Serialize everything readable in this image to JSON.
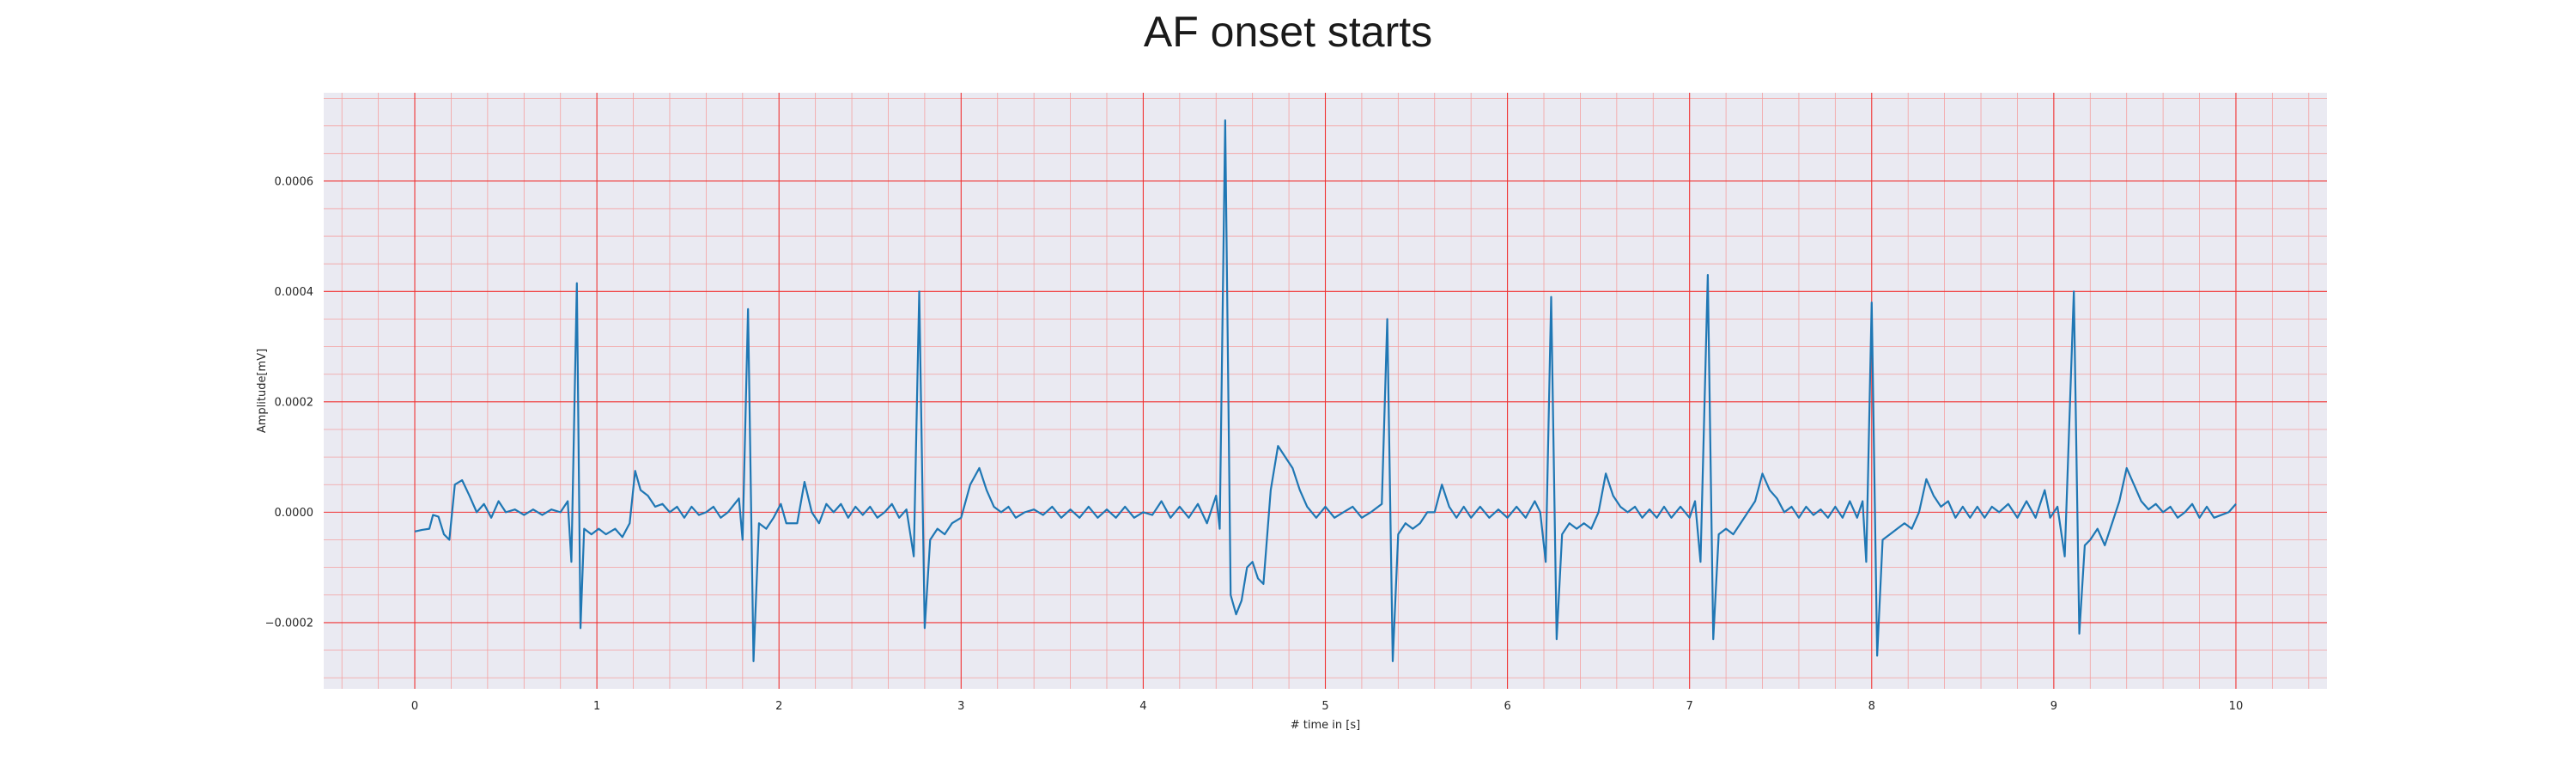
{
  "chart_data": {
    "type": "line",
    "title": "AF onset starts",
    "xlabel": "# time in [s]",
    "ylabel": "Amplitude[mV]",
    "xlim": [
      -0.5,
      10.5
    ],
    "ylim": [
      -0.00032,
      0.00076
    ],
    "x_ticks": [
      0,
      1,
      2,
      3,
      4,
      5,
      6,
      7,
      8,
      9,
      10
    ],
    "x_tick_labels": [
      "0",
      "1",
      "2",
      "3",
      "4",
      "5",
      "6",
      "7",
      "8",
      "9",
      "10"
    ],
    "y_ticks": [
      -0.0002,
      0.0,
      0.0002,
      0.0004,
      0.0006
    ],
    "y_tick_labels": [
      "−0.0002",
      "0.0000",
      "0.0002",
      "0.0004",
      "0.0006"
    ],
    "grid": true,
    "minor_grid": true,
    "colors": {
      "line": "#1f77b4",
      "background": "#eaeaf2",
      "major_grid": "#f03232",
      "minor_grid": "#f4a0a0"
    },
    "series": [
      {
        "points": [
          [
            0.0,
            -3.5e-05
          ],
          [
            0.04,
            -3.2e-05
          ],
          [
            0.08,
            -3e-05
          ],
          [
            0.1,
            -5e-06
          ],
          [
            0.13,
            -8e-06
          ],
          [
            0.16,
            -4e-05
          ],
          [
            0.19,
            -5e-05
          ],
          [
            0.22,
            5e-05
          ],
          [
            0.26,
            5.8e-05
          ],
          [
            0.3,
            3e-05
          ],
          [
            0.34,
            0.0
          ],
          [
            0.38,
            1.5e-05
          ],
          [
            0.42,
            -1e-05
          ],
          [
            0.46,
            2e-05
          ],
          [
            0.5,
            0.0
          ],
          [
            0.55,
            5e-06
          ],
          [
            0.6,
            -5e-06
          ],
          [
            0.65,
            5e-06
          ],
          [
            0.7,
            -5e-06
          ],
          [
            0.75,
            5e-06
          ],
          [
            0.8,
            0.0
          ],
          [
            0.84,
            2e-05
          ],
          [
            0.86,
            -9e-05
          ],
          [
            0.89,
            0.000415
          ],
          [
            0.91,
            -0.00021
          ],
          [
            0.93,
            -3e-05
          ],
          [
            0.97,
            -4e-05
          ],
          [
            1.01,
            -3e-05
          ],
          [
            1.05,
            -4e-05
          ],
          [
            1.1,
            -3e-05
          ],
          [
            1.14,
            -4.5e-05
          ],
          [
            1.18,
            -2e-05
          ],
          [
            1.21,
            7.5e-05
          ],
          [
            1.24,
            4e-05
          ],
          [
            1.28,
            3e-05
          ],
          [
            1.32,
            1e-05
          ],
          [
            1.36,
            1.5e-05
          ],
          [
            1.4,
            0.0
          ],
          [
            1.44,
            1e-05
          ],
          [
            1.48,
            -1e-05
          ],
          [
            1.52,
            1e-05
          ],
          [
            1.56,
            -5e-06
          ],
          [
            1.6,
            0.0
          ],
          [
            1.64,
            1e-05
          ],
          [
            1.68,
            -1e-05
          ],
          [
            1.72,
            0.0
          ],
          [
            1.78,
            2.5e-05
          ],
          [
            1.8,
            -5e-05
          ],
          [
            1.83,
            0.000368
          ],
          [
            1.86,
            -0.00027
          ],
          [
            1.89,
            -2e-05
          ],
          [
            1.93,
            -3e-05
          ],
          [
            1.97,
            -1e-05
          ],
          [
            2.01,
            1.5e-05
          ],
          [
            2.04,
            -2e-05
          ],
          [
            2.1,
            -2e-05
          ],
          [
            2.14,
            5.5e-05
          ],
          [
            2.18,
            0.0
          ],
          [
            2.22,
            -2e-05
          ],
          [
            2.26,
            1.5e-05
          ],
          [
            2.3,
            0.0
          ],
          [
            2.34,
            1.5e-05
          ],
          [
            2.38,
            -1e-05
          ],
          [
            2.42,
            1e-05
          ],
          [
            2.46,
            -5e-06
          ],
          [
            2.5,
            1e-05
          ],
          [
            2.54,
            -1e-05
          ],
          [
            2.58,
            0.0
          ],
          [
            2.62,
            1.5e-05
          ],
          [
            2.66,
            -1e-05
          ],
          [
            2.7,
            5e-06
          ],
          [
            2.74,
            -8e-05
          ],
          [
            2.77,
            0.0004
          ],
          [
            2.8,
            -0.00021
          ],
          [
            2.83,
            -5e-05
          ],
          [
            2.87,
            -3e-05
          ],
          [
            2.91,
            -4e-05
          ],
          [
            2.95,
            -2e-05
          ],
          [
            3.0,
            -1e-05
          ],
          [
            3.05,
            5e-05
          ],
          [
            3.1,
            8e-05
          ],
          [
            3.14,
            4e-05
          ],
          [
            3.18,
            1e-05
          ],
          [
            3.22,
            0.0
          ],
          [
            3.26,
            1e-05
          ],
          [
            3.3,
            -1e-05
          ],
          [
            3.35,
            0.0
          ],
          [
            3.4,
            5e-06
          ],
          [
            3.45,
            -5e-06
          ],
          [
            3.5,
            1e-05
          ],
          [
            3.55,
            -1e-05
          ],
          [
            3.6,
            5e-06
          ],
          [
            3.65,
            -1e-05
          ],
          [
            3.7,
            1e-05
          ],
          [
            3.75,
            -1e-05
          ],
          [
            3.8,
            5e-06
          ],
          [
            3.85,
            -1e-05
          ],
          [
            3.9,
            1e-05
          ],
          [
            3.95,
            -1e-05
          ],
          [
            4.0,
            0.0
          ],
          [
            4.05,
            -5e-06
          ],
          [
            4.1,
            2e-05
          ],
          [
            4.15,
            -1e-05
          ],
          [
            4.2,
            1e-05
          ],
          [
            4.25,
            -1e-05
          ],
          [
            4.3,
            1.5e-05
          ],
          [
            4.35,
            -2e-05
          ],
          [
            4.4,
            3e-05
          ],
          [
            4.42,
            -3e-05
          ],
          [
            4.45,
            0.00071
          ],
          [
            4.48,
            -0.00015
          ],
          [
            4.51,
            -0.000185
          ],
          [
            4.54,
            -0.00016
          ],
          [
            4.57,
            -0.0001
          ],
          [
            4.6,
            -9e-05
          ],
          [
            4.63,
            -0.00012
          ],
          [
            4.66,
            -0.00013
          ],
          [
            4.7,
            4e-05
          ],
          [
            4.74,
            0.00012
          ],
          [
            4.78,
            0.0001
          ],
          [
            4.82,
            8e-05
          ],
          [
            4.86,
            4e-05
          ],
          [
            4.9,
            1e-05
          ],
          [
            4.95,
            -1e-05
          ],
          [
            5.0,
            1e-05
          ],
          [
            5.05,
            -1e-05
          ],
          [
            5.1,
            0.0
          ],
          [
            5.15,
            1e-05
          ],
          [
            5.2,
            -1e-05
          ],
          [
            5.25,
            0.0
          ],
          [
            5.31,
            1.5e-05
          ],
          [
            5.34,
            0.00035
          ],
          [
            5.37,
            -0.00027
          ],
          [
            5.4,
            -4e-05
          ],
          [
            5.44,
            -2e-05
          ],
          [
            5.48,
            -3e-05
          ],
          [
            5.52,
            -2e-05
          ],
          [
            5.56,
            0.0
          ],
          [
            5.6,
            0.0
          ],
          [
            5.64,
            5e-05
          ],
          [
            5.68,
            1e-05
          ],
          [
            5.72,
            -1e-05
          ],
          [
            5.76,
            1e-05
          ],
          [
            5.8,
            -1e-05
          ],
          [
            5.85,
            1e-05
          ],
          [
            5.9,
            -1e-05
          ],
          [
            5.95,
            5e-06
          ],
          [
            6.0,
            -1e-05
          ],
          [
            6.05,
            1e-05
          ],
          [
            6.1,
            -1e-05
          ],
          [
            6.15,
            2e-05
          ],
          [
            6.18,
            0.0
          ],
          [
            6.21,
            -9e-05
          ],
          [
            6.24,
            0.00039
          ],
          [
            6.27,
            -0.00023
          ],
          [
            6.3,
            -4e-05
          ],
          [
            6.34,
            -2e-05
          ],
          [
            6.38,
            -3e-05
          ],
          [
            6.42,
            -2e-05
          ],
          [
            6.46,
            -3e-05
          ],
          [
            6.5,
            0.0
          ],
          [
            6.54,
            7e-05
          ],
          [
            6.58,
            3e-05
          ],
          [
            6.62,
            1e-05
          ],
          [
            6.66,
            0.0
          ],
          [
            6.7,
            1e-05
          ],
          [
            6.74,
            -1e-05
          ],
          [
            6.78,
            5e-06
          ],
          [
            6.82,
            -1e-05
          ],
          [
            6.86,
            1e-05
          ],
          [
            6.9,
            -1e-05
          ],
          [
            6.95,
            1e-05
          ],
          [
            7.0,
            -1e-05
          ],
          [
            7.03,
            2e-05
          ],
          [
            7.06,
            -9e-05
          ],
          [
            7.1,
            0.00043
          ],
          [
            7.13,
            -0.00023
          ],
          [
            7.16,
            -4e-05
          ],
          [
            7.2,
            -3e-05
          ],
          [
            7.24,
            -4e-05
          ],
          [
            7.28,
            -2e-05
          ],
          [
            7.32,
            0.0
          ],
          [
            7.36,
            2e-05
          ],
          [
            7.4,
            7e-05
          ],
          [
            7.44,
            4e-05
          ],
          [
            7.48,
            2.5e-05
          ],
          [
            7.52,
            0.0
          ],
          [
            7.56,
            1e-05
          ],
          [
            7.6,
            -1e-05
          ],
          [
            7.64,
            1e-05
          ],
          [
            7.68,
            -5e-06
          ],
          [
            7.72,
            5e-06
          ],
          [
            7.76,
            -1e-05
          ],
          [
            7.8,
            1e-05
          ],
          [
            7.84,
            -1e-05
          ],
          [
            7.88,
            2e-05
          ],
          [
            7.92,
            -1e-05
          ],
          [
            7.95,
            2e-05
          ],
          [
            7.97,
            -9e-05
          ],
          [
            8.0,
            0.00038
          ],
          [
            8.03,
            -0.00026
          ],
          [
            8.06,
            -5e-05
          ],
          [
            8.1,
            -4e-05
          ],
          [
            8.14,
            -3e-05
          ],
          [
            8.18,
            -2e-05
          ],
          [
            8.22,
            -3e-05
          ],
          [
            8.26,
            0.0
          ],
          [
            8.3,
            6e-05
          ],
          [
            8.34,
            3e-05
          ],
          [
            8.38,
            1e-05
          ],
          [
            8.42,
            2e-05
          ],
          [
            8.46,
            -1e-05
          ],
          [
            8.5,
            1e-05
          ],
          [
            8.54,
            -1e-05
          ],
          [
            8.58,
            1e-05
          ],
          [
            8.62,
            -1e-05
          ],
          [
            8.66,
            1e-05
          ],
          [
            8.7,
            0.0
          ],
          [
            8.75,
            1.5e-05
          ],
          [
            8.8,
            -1e-05
          ],
          [
            8.85,
            2e-05
          ],
          [
            8.9,
            -1e-05
          ],
          [
            8.95,
            4e-05
          ],
          [
            8.98,
            -1e-05
          ],
          [
            9.02,
            1e-05
          ],
          [
            9.06,
            -8e-05
          ],
          [
            9.11,
            0.0004
          ],
          [
            9.14,
            -0.00022
          ],
          [
            9.17,
            -6e-05
          ],
          [
            9.2,
            -5e-05
          ],
          [
            9.24,
            -3e-05
          ],
          [
            9.28,
            -6e-05
          ],
          [
            9.32,
            -2e-05
          ],
          [
            9.36,
            2e-05
          ],
          [
            9.4,
            8e-05
          ],
          [
            9.44,
            5e-05
          ],
          [
            9.48,
            2e-05
          ],
          [
            9.52,
            5e-06
          ],
          [
            9.56,
            1.5e-05
          ],
          [
            9.6,
            0.0
          ],
          [
            9.64,
            1e-05
          ],
          [
            9.68,
            -1e-05
          ],
          [
            9.72,
            0.0
          ],
          [
            9.76,
            1.5e-05
          ],
          [
            9.8,
            -1e-05
          ],
          [
            9.84,
            1e-05
          ],
          [
            9.88,
            -1e-05
          ],
          [
            9.92,
            -5e-06
          ],
          [
            9.96,
            0.0
          ],
          [
            10.0,
            1.5e-05
          ]
        ]
      }
    ]
  }
}
